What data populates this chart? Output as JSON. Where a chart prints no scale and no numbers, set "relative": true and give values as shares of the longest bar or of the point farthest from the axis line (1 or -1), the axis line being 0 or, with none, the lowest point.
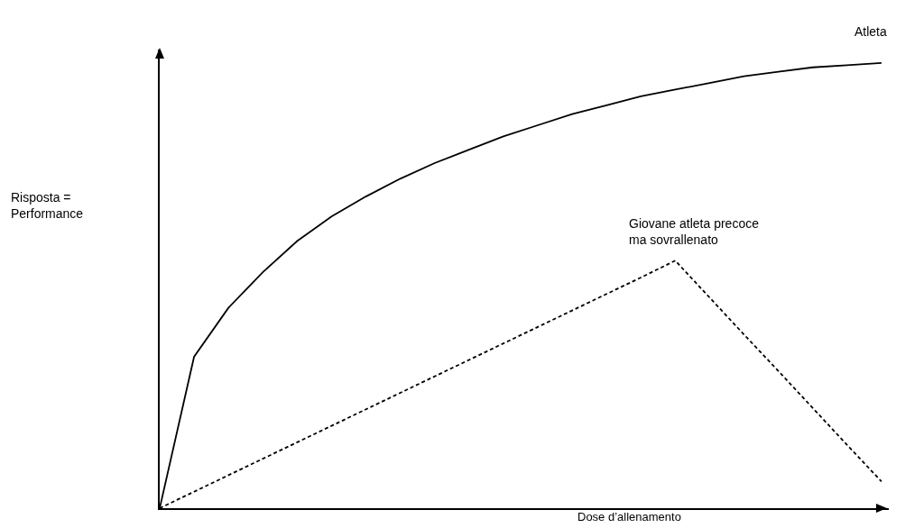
{
  "chart_data": {
    "type": "line",
    "relative": true,
    "xlabel": "Dose d’allenamento",
    "annotations": [
      "Risposta =\nPerformance"
    ],
    "marker": "none",
    "grid": false,
    "legend": false,
    "categories": [
      null,
      null,
      null,
      null,
      null,
      null,
      null,
      null,
      null,
      null,
      null,
      null,
      null,
      null,
      null,
      null,
      null,
      null,
      null,
      null,
      null,
      null
    ],
    "series": [
      {
        "name": "Atleta",
        "color": "#000000",
        "line_style": "solid",
        "values": [
          0,
          0.34,
          0.45,
          0.53,
          0.6,
          0.655,
          0.7,
          0.74,
          0.775,
          0.805,
          0.835,
          0.86,
          0.885,
          0.905,
          0.925,
          0.94,
          0.955,
          0.97,
          0.98,
          0.99,
          0.995,
          1
        ]
      },
      {
        "name": "Giovane atleta precoce\nma sovrallenato",
        "color": "#000000",
        "line_style": "dashed",
        "values": [
          0,
          0.037,
          0.074,
          0.111,
          0.148,
          0.185,
          0.222,
          0.259,
          0.296,
          0.333,
          0.37,
          0.407,
          0.444,
          0.481,
          0.518,
          0.556,
          0.473,
          0.39,
          0.308,
          0.225,
          0.142,
          0.06
        ]
      }
    ]
  }
}
